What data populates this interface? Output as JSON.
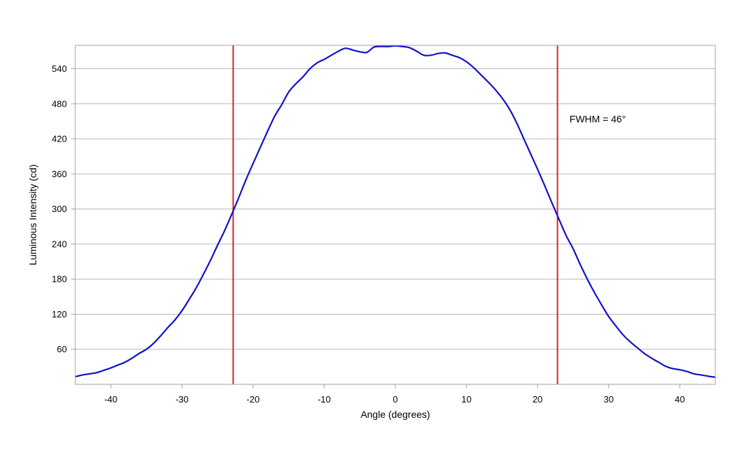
{
  "chart_data": {
    "type": "line",
    "title": "",
    "xlabel": "Angle (degrees)",
    "ylabel": "Luminous Intensity (cd)",
    "xlim": [
      -45,
      45
    ],
    "ylim": [
      0,
      580
    ],
    "x_ticks": [
      -40,
      -30,
      -20,
      -10,
      0,
      10,
      20,
      30,
      40
    ],
    "y_ticks": [
      60,
      120,
      180,
      240,
      300,
      360,
      420,
      480,
      540
    ],
    "grid": "horizontal",
    "legend": "none",
    "annotation": {
      "text": "FWHM = 46°",
      "x": 24.5,
      "y": 448
    },
    "reference_lines": [
      {
        "x": -22.8,
        "color": "#e02020"
      },
      {
        "x": 22.8,
        "color": "#e02020"
      }
    ],
    "series": [
      {
        "color": "#1010cc",
        "points": [
          [
            -45,
            13
          ],
          [
            -44,
            16
          ],
          [
            -43,
            18
          ],
          [
            -42,
            20
          ],
          [
            -41,
            24
          ],
          [
            -40,
            28
          ],
          [
            -39,
            33
          ],
          [
            -38,
            38
          ],
          [
            -37,
            45
          ],
          [
            -36,
            53
          ],
          [
            -35,
            60
          ],
          [
            -34,
            70
          ],
          [
            -33,
            83
          ],
          [
            -32,
            97
          ],
          [
            -31,
            110
          ],
          [
            -30,
            126
          ],
          [
            -29,
            145
          ],
          [
            -28,
            165
          ],
          [
            -27,
            188
          ],
          [
            -26,
            212
          ],
          [
            -25,
            238
          ],
          [
            -24,
            263
          ],
          [
            -23,
            291
          ],
          [
            -22,
            320
          ],
          [
            -21,
            350
          ],
          [
            -20,
            378
          ],
          [
            -19,
            405
          ],
          [
            -18,
            432
          ],
          [
            -17,
            458
          ],
          [
            -16,
            478
          ],
          [
            -15,
            500
          ],
          [
            -14,
            514
          ],
          [
            -13,
            526
          ],
          [
            -12,
            540
          ],
          [
            -11,
            550
          ],
          [
            -10,
            556
          ],
          [
            -9,
            563
          ],
          [
            -8,
            570
          ],
          [
            -7,
            575
          ],
          [
            -6,
            572
          ],
          [
            -5,
            569
          ],
          [
            -4,
            568
          ],
          [
            -3,
            577
          ],
          [
            -2,
            578
          ],
          [
            -1,
            578
          ],
          [
            0,
            579
          ],
          [
            1,
            578
          ],
          [
            2,
            576
          ],
          [
            3,
            570
          ],
          [
            4,
            563
          ],
          [
            5,
            563
          ],
          [
            6,
            566
          ],
          [
            7,
            567
          ],
          [
            8,
            563
          ],
          [
            9,
            559
          ],
          [
            10,
            552
          ],
          [
            11,
            542
          ],
          [
            12,
            530
          ],
          [
            13,
            518
          ],
          [
            14,
            505
          ],
          [
            15,
            490
          ],
          [
            16,
            472
          ],
          [
            17,
            449
          ],
          [
            18,
            422
          ],
          [
            19,
            395
          ],
          [
            20,
            368
          ],
          [
            21,
            340
          ],
          [
            22,
            311
          ],
          [
            23,
            283
          ],
          [
            24,
            255
          ],
          [
            25,
            232
          ],
          [
            26,
            205
          ],
          [
            27,
            180
          ],
          [
            28,
            157
          ],
          [
            29,
            136
          ],
          [
            30,
            116
          ],
          [
            31,
            100
          ],
          [
            32,
            85
          ],
          [
            33,
            73
          ],
          [
            34,
            63
          ],
          [
            35,
            53
          ],
          [
            36,
            45
          ],
          [
            37,
            38
          ],
          [
            38,
            31
          ],
          [
            39,
            27
          ],
          [
            40,
            25
          ],
          [
            41,
            22
          ],
          [
            42,
            18
          ],
          [
            43,
            16
          ],
          [
            44,
            14
          ],
          [
            45,
            12
          ]
        ]
      }
    ]
  }
}
